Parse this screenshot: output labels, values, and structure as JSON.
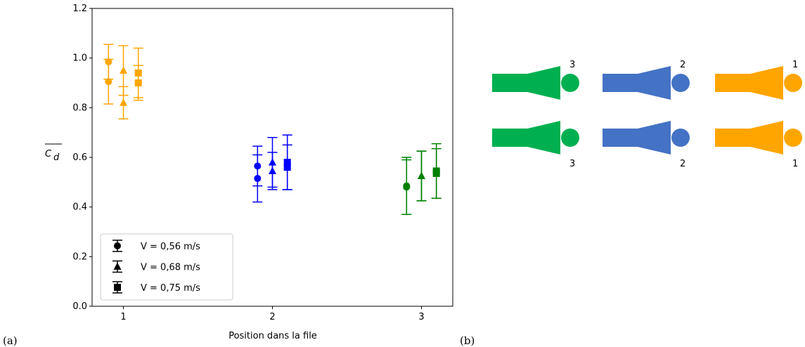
{
  "chart_data": {
    "type": "errorbar",
    "xlabel": "Position dans la file",
    "ylabel_base": "C",
    "ylabel_sub": "d",
    "xlim": [
      0.79,
      3.21
    ],
    "ylim": [
      0,
      1.2
    ],
    "xticks": [
      1,
      2,
      3
    ],
    "yticks": [
      {
        "value": 0,
        "label": "0.0"
      },
      0.2,
      0.4,
      0.6,
      0.8,
      {
        "value": 1,
        "label": "1.0"
      },
      1.2
    ],
    "point_colors": [
      "#ffa500",
      "#ffa500",
      "#0000ff",
      "#0000ff",
      "#008000",
      "#008000"
    ],
    "legend_color": "#000000",
    "legend": "lower left",
    "series": [
      {
        "name": "V = 0,56 m/s",
        "marker": "circle",
        "x": [
          0.9,
          0.9,
          1.9,
          1.9,
          2.9,
          2.9
        ],
        "values": [
          0.985,
          0.905,
          0.565,
          0.515,
          0.485,
          0.48
        ],
        "errors": [
          0.07,
          0.09,
          0.08,
          0.095,
          0.115,
          0.11
        ]
      },
      {
        "name": "V = 0,68 m/s",
        "marker": "triangle",
        "x": [
          1,
          1,
          2,
          2,
          3,
          3
        ],
        "values": [
          0.95,
          0.82,
          0.58,
          0.545,
          0.525,
          0.525
        ],
        "errors": [
          0.1,
          0.065,
          0.1,
          0.075,
          0.1,
          0.1
        ]
      },
      {
        "name": "V = 0,75 m/s",
        "marker": "square",
        "x": [
          1.1,
          1.1,
          2.1,
          2.1,
          3.1,
          3.1
        ],
        "values": [
          0.94,
          0.9,
          0.58,
          0.56,
          0.545,
          0.535
        ],
        "errors": [
          0.1,
          0.07,
          0.11,
          0.09,
          0.11,
          0.1
        ]
      }
    ]
  },
  "panels": {
    "a": "(a)",
    "b": "(b)"
  },
  "diagram": {
    "top_labels": [
      "3",
      "2",
      "1"
    ],
    "bottom_labels": [
      "3",
      "2",
      "1"
    ]
  }
}
